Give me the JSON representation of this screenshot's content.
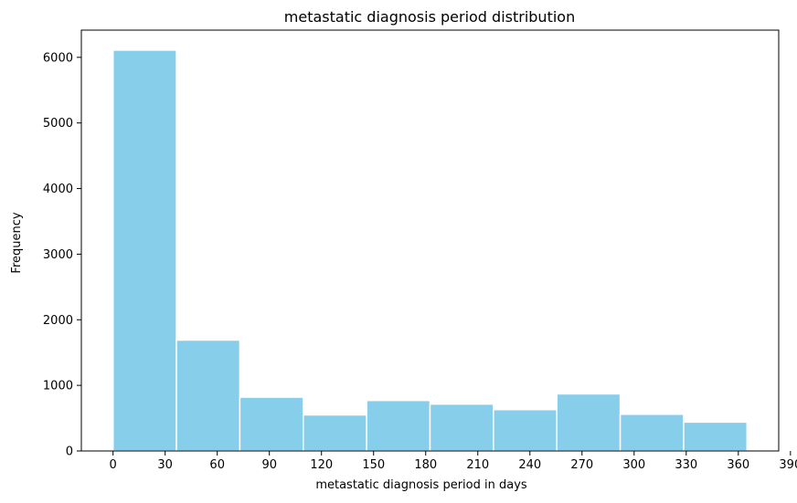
{
  "chart_data": {
    "type": "bar",
    "title": "metastatic diagnosis period distribution",
    "xlabel": "metastatic diagnosis period in days",
    "ylabel": "Frequency",
    "bins": [
      {
        "start": 0,
        "end": 36.5,
        "value": 6110
      },
      {
        "start": 36.5,
        "end": 73,
        "value": 1690
      },
      {
        "start": 73,
        "end": 109.5,
        "value": 820
      },
      {
        "start": 109.5,
        "end": 146,
        "value": 550
      },
      {
        "start": 146,
        "end": 182.5,
        "value": 770
      },
      {
        "start": 182.5,
        "end": 219,
        "value": 715
      },
      {
        "start": 219,
        "end": 255.5,
        "value": 630
      },
      {
        "start": 255.5,
        "end": 292,
        "value": 870
      },
      {
        "start": 292,
        "end": 328.5,
        "value": 560
      },
      {
        "start": 328.5,
        "end": 365,
        "value": 440
      }
    ],
    "xlim": [
      -18.25,
      383.25
    ],
    "ylim": [
      0,
      6415
    ],
    "xticks": [
      "0",
      "30",
      "60",
      "90",
      "120",
      "150",
      "180",
      "210",
      "240",
      "270",
      "300",
      "330",
      "360",
      "390"
    ],
    "yticks": [
      "0",
      "1000",
      "2000",
      "3000",
      "4000",
      "5000",
      "6000"
    ],
    "bar_color": "#87ceeb",
    "edge_color": "#ffffff",
    "grid": false,
    "legend": "none"
  }
}
